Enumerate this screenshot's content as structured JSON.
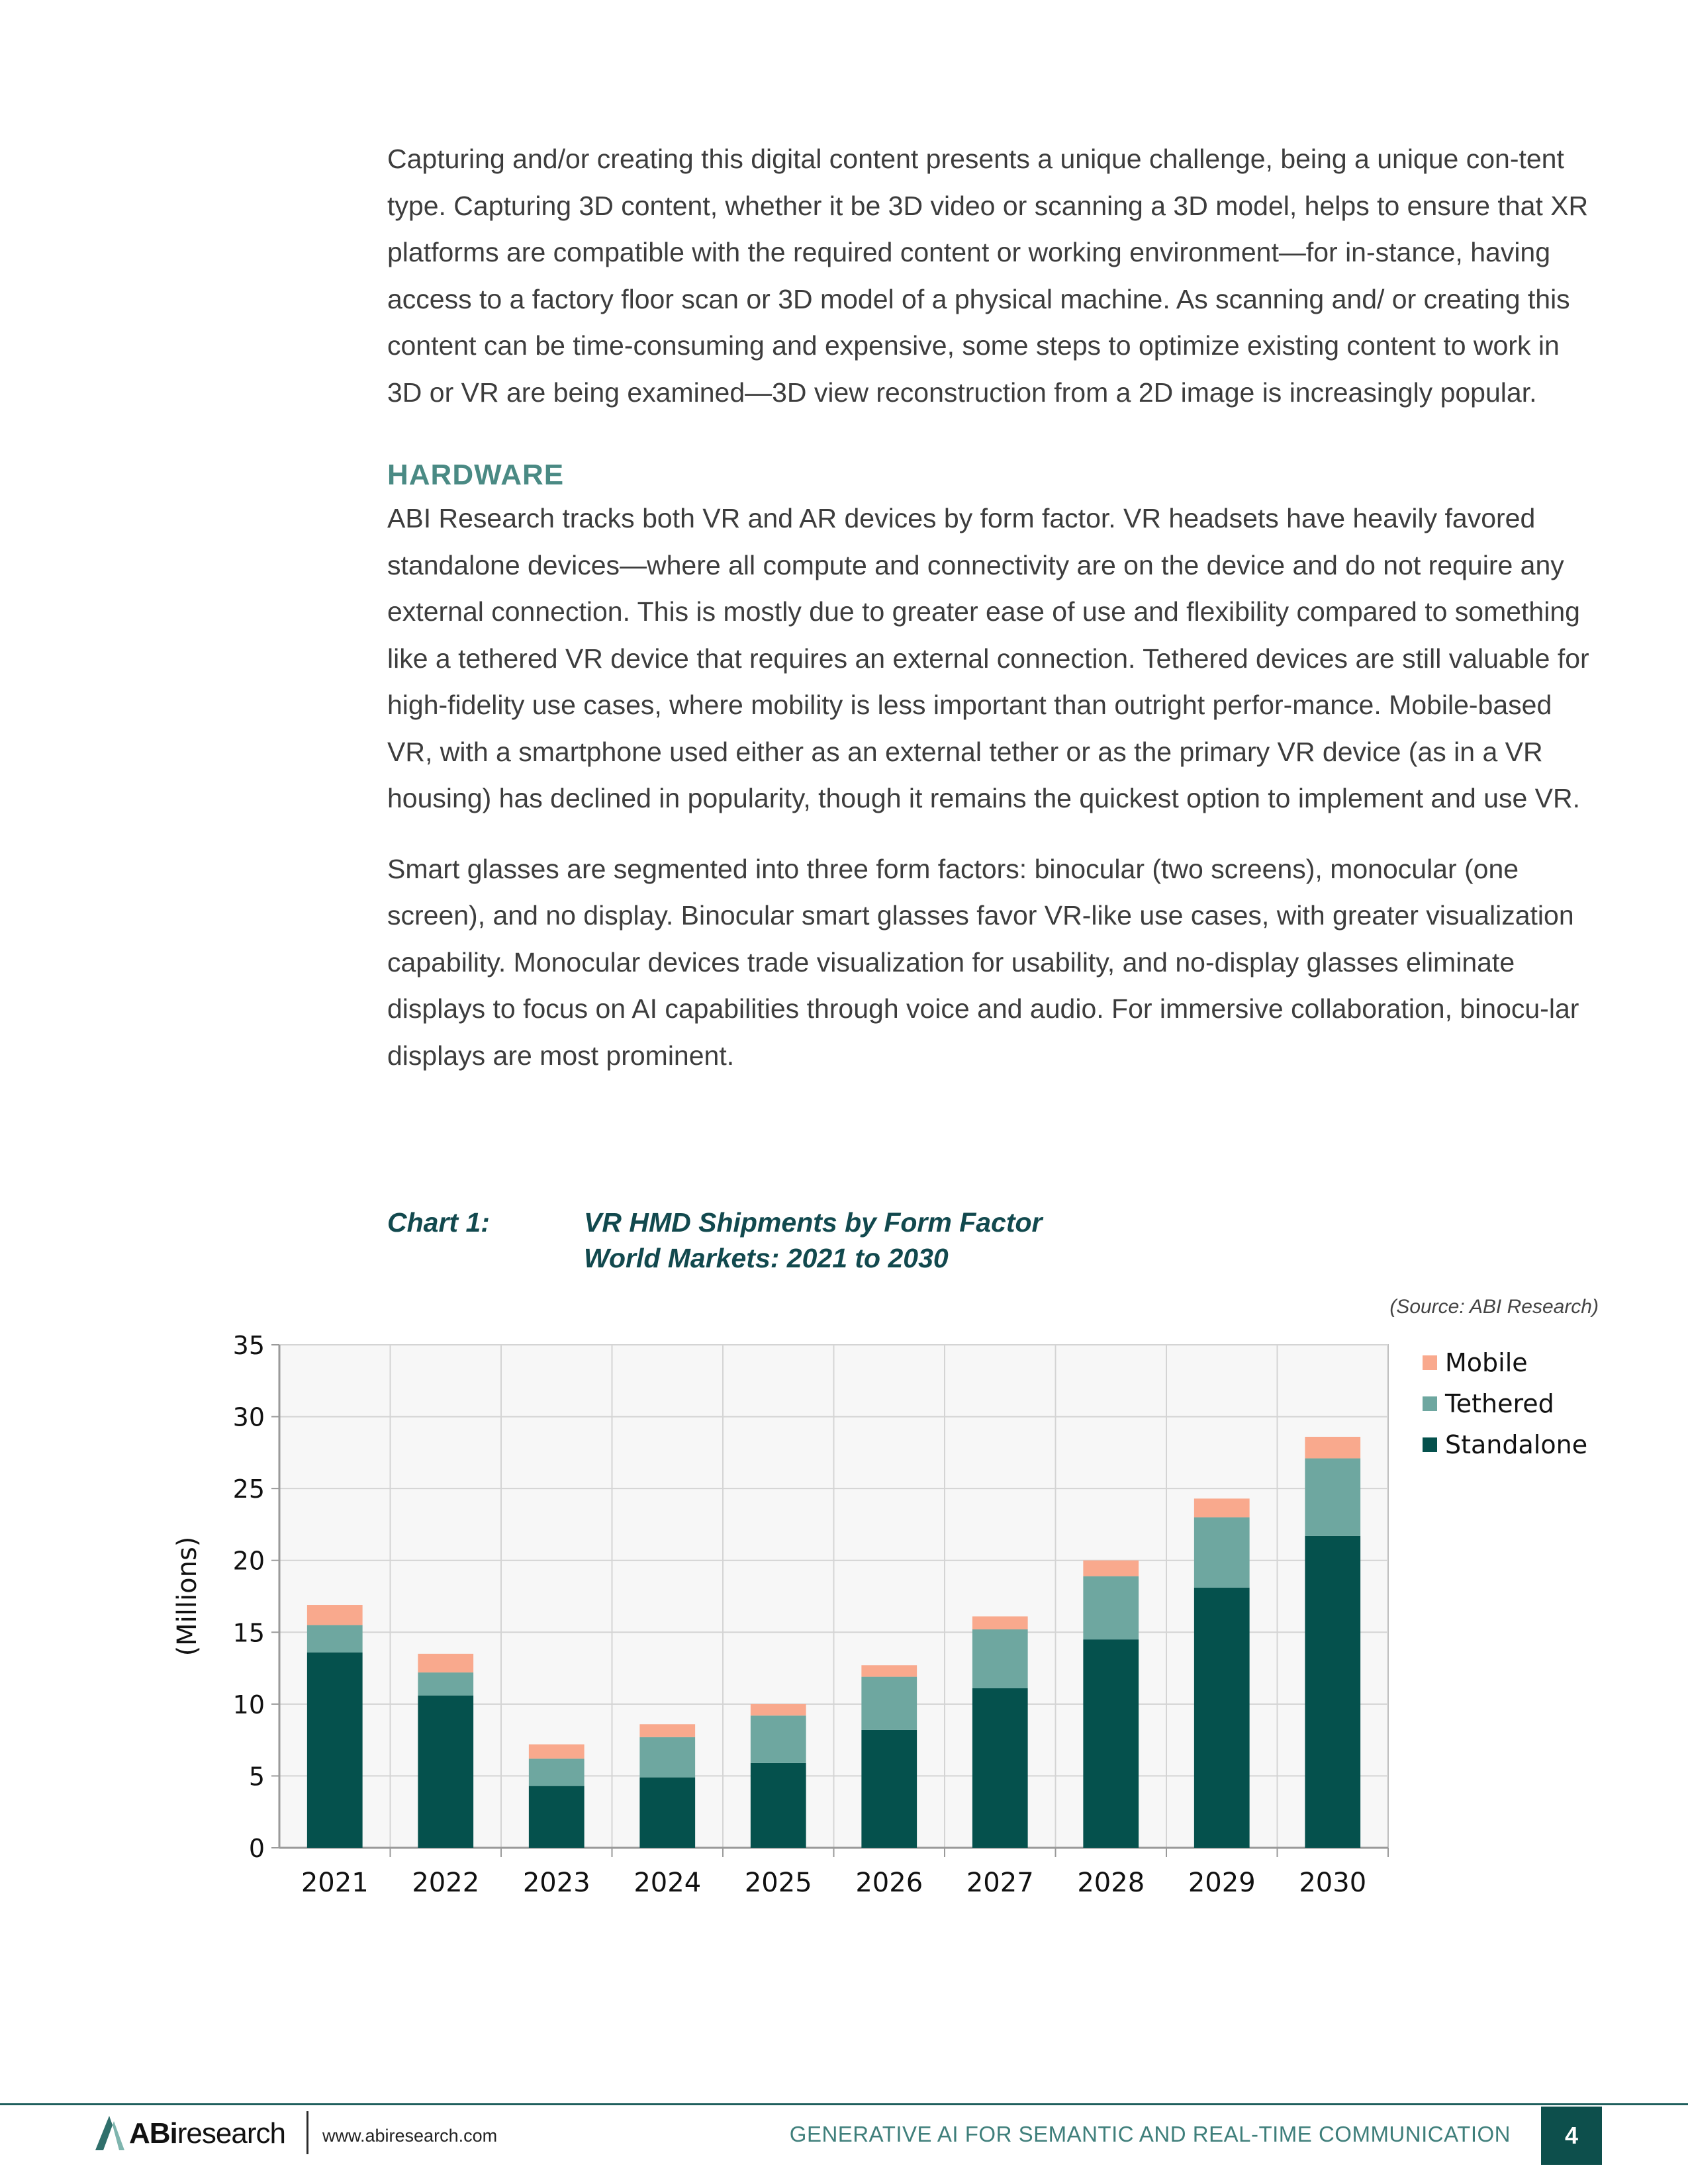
{
  "body": {
    "paragraph_1": "Capturing and/or creating this digital content presents a unique challenge, being a unique con-tent type. Capturing 3D content, whether it be 3D video or scanning a 3D model, helps to ensure that XR platforms are compatible with the required content or working environment—for in-stance, having access to a factory floor scan or 3D model of a physical machine. As scanning and/ or creating this content can be time-consuming and expensive, some steps to optimize existing content to work in 3D or VR are being examined—3D view reconstruction from a 2D image is increasingly popular.",
    "heading": "HARDWARE",
    "paragraph_2": "ABI Research tracks both VR and AR devices by form factor. VR headsets have heavily favored standalone devices—where all compute and connectivity are on the device and do not require any external connection. This is mostly due to greater ease of use and flexibility compared to something like a tethered VR device that requires an external connection. Tethered devices are still valuable for high-fidelity use cases, where mobility is less important than outright perfor-mance. Mobile-based VR, with a smartphone used either as an external tether or as the primary VR device (as in a VR housing) has declined in popularity, though it remains the quickest option to implement and use VR.",
    "paragraph_3": "Smart glasses are segmented into three form factors: binocular (two screens), monocular (one screen), and no display. Binocular smart glasses favor VR-like use cases, with greater visualization capability. Monocular devices trade visualization for usability, and no-display glasses eliminate displays to focus on AI capabilities through voice and audio. For immersive collaboration, binocu-lar displays are most prominent."
  },
  "chart_caption": {
    "label": "Chart 1:",
    "title": "VR HMD Shipments by Form Factor",
    "subtitle": "World Markets: 2021 to 2030",
    "source": "(Source: ABI Research)"
  },
  "chart_data": {
    "type": "bar",
    "stacked": true,
    "categories": [
      "2021",
      "2022",
      "2023",
      "2024",
      "2025",
      "2026",
      "2027",
      "2028",
      "2029",
      "2030"
    ],
    "series": [
      {
        "name": "Standalone",
        "color": "#05514d",
        "values": [
          13.6,
          10.6,
          4.3,
          4.9,
          5.9,
          8.2,
          11.1,
          14.5,
          18.1,
          21.7
        ]
      },
      {
        "name": "Tethered",
        "color": "#6ea7a0",
        "values": [
          1.9,
          1.6,
          1.9,
          2.8,
          3.3,
          3.7,
          4.1,
          4.4,
          4.9,
          5.4
        ]
      },
      {
        "name": "Mobile",
        "color": "#f9a98d",
        "values": [
          1.4,
          1.3,
          1.0,
          0.9,
          0.8,
          0.8,
          0.9,
          1.1,
          1.3,
          1.5
        ]
      }
    ],
    "ylabel": "(Millions)",
    "xlabel": "",
    "ylim": [
      0,
      35
    ],
    "yticks": [
      0,
      5,
      10,
      15,
      20,
      25,
      30,
      35
    ],
    "grid": true,
    "legend_position": "right",
    "legend_order": [
      "Mobile",
      "Tethered",
      "Standalone"
    ]
  },
  "footer": {
    "logo_bold": "ABi",
    "logo_rest": "research",
    "website": "www.abiresearch.com",
    "title": "GENERATIVE AI FOR SEMANTIC AND REAL-TIME COMMUNICATION",
    "page_number": "4"
  }
}
